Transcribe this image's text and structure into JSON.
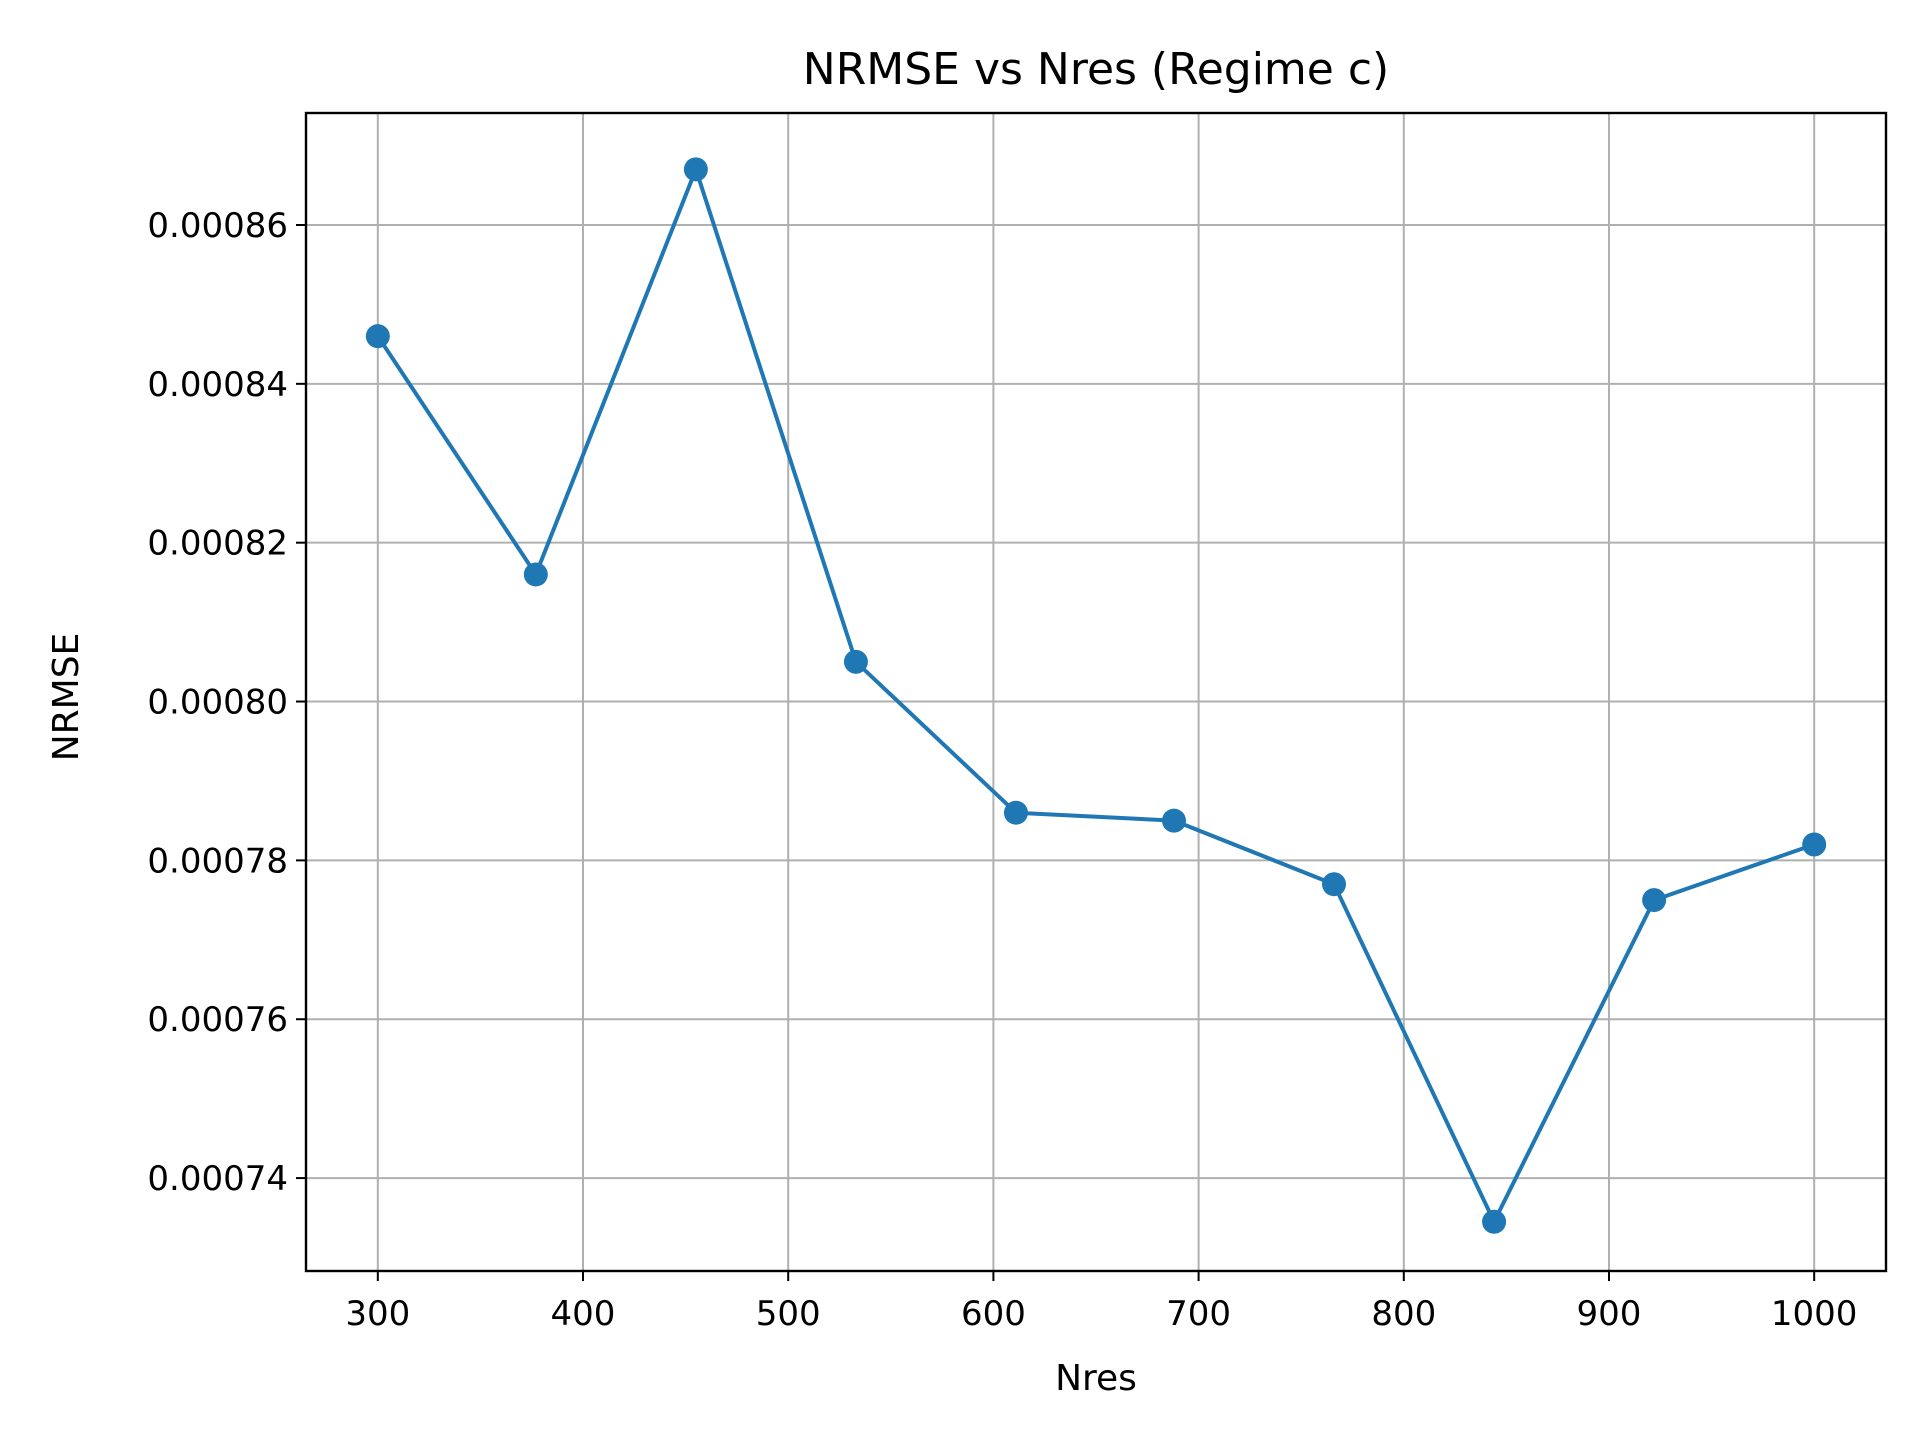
{
  "chart_data": {
    "type": "line",
    "title": "NRMSE vs Nres (Regime c)",
    "xlabel": "Nres",
    "ylabel": "NRMSE",
    "x_ticks": [
      300,
      400,
      500,
      600,
      700,
      800,
      900,
      1000
    ],
    "y_ticks": [
      0.00074,
      0.00076,
      0.00078,
      0.0008,
      0.00082,
      0.00084,
      0.00086
    ],
    "y_tick_labels": [
      "0.00074",
      "0.00076",
      "0.00078",
      "0.00080",
      "0.00082",
      "0.00084",
      "0.00086"
    ],
    "xlim": [
      265,
      1035
    ],
    "ylim": [
      0.0007283,
      0.0008741
    ],
    "grid": true,
    "series": [
      {
        "color": "#1f77b4",
        "marker": "circle",
        "x": [
          300,
          377,
          455,
          533,
          611,
          688,
          766,
          844,
          922,
          1000
        ],
        "y": [
          0.000846,
          0.000816,
          0.000867,
          0.000805,
          0.000786,
          0.000785,
          0.000777,
          0.0007345,
          0.000775,
          0.000782
        ]
      }
    ]
  }
}
